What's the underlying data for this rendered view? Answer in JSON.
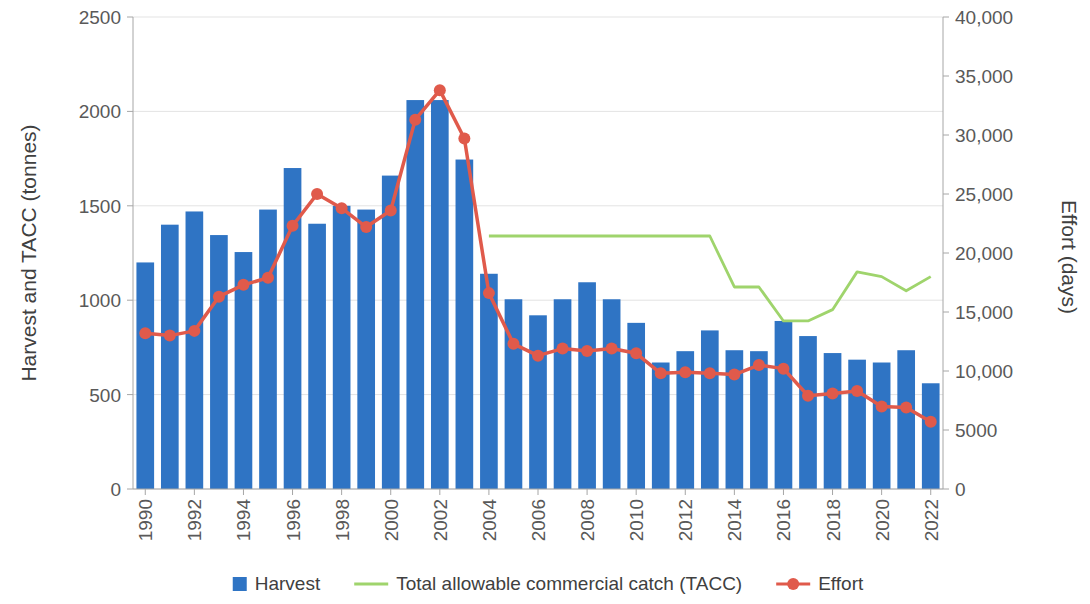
{
  "chart_data": {
    "type": "bar",
    "y_label": "Harvest and TACC (tonnes)",
    "y2_label": "Effort (days)",
    "categories": [
      "1990",
      null,
      "1992",
      null,
      "1994",
      null,
      "1996",
      null,
      "1998",
      null,
      "2000",
      null,
      "2002",
      null,
      "2004",
      null,
      "2006",
      null,
      "2008",
      null,
      "2010",
      null,
      "2012",
      null,
      "2014",
      null,
      "2016",
      null,
      "2018",
      null,
      "2020",
      null,
      "2022"
    ],
    "series": [
      {
        "name": "Harvest",
        "type": "bar",
        "color": "#2f74c4",
        "values": [
          1200,
          1400,
          1470,
          1345,
          1255,
          1480,
          1700,
          1405,
          1500,
          1480,
          1660,
          2060,
          2060,
          1745,
          1140,
          1005,
          920,
          1005,
          1095,
          1005,
          880,
          670,
          730,
          840,
          735,
          730,
          890,
          810,
          720,
          685,
          670,
          735,
          560
        ]
      },
      {
        "name": "Total allowable commercial catch (TACC)",
        "type": "line",
        "color": "#9fd46c",
        "marker": "none",
        "values": [
          null,
          null,
          null,
          null,
          null,
          null,
          null,
          null,
          null,
          null,
          null,
          null,
          null,
          null,
          1340,
          1340,
          1340,
          1340,
          1340,
          1340,
          1340,
          1340,
          1340,
          1340,
          1070,
          1070,
          890,
          890,
          950,
          1150,
          1125,
          1050,
          1125
        ]
      },
      {
        "name": "Effort",
        "type": "line",
        "color": "#e05a4b",
        "marker": "circle",
        "axis": "y2",
        "values": [
          13200,
          13000,
          13400,
          16300,
          17300,
          17900,
          22300,
          25000,
          23800,
          22200,
          23600,
          31300,
          33800,
          29700,
          16600,
          12300,
          11300,
          11900,
          11700,
          11900,
          11500,
          9800,
          9900,
          9800,
          9700,
          10500,
          10200,
          7900,
          8100,
          8300,
          7000,
          6900,
          5700
        ]
      }
    ],
    "ylim": [
      0,
      2500
    ],
    "yticks": [
      0,
      500,
      1000,
      1500,
      2000,
      2500
    ],
    "y2lim": [
      0,
      40000
    ],
    "y2ticks": [
      0,
      5000,
      {
        "value": 10000,
        "label": "10,000"
      },
      {
        "value": 15000,
        "label": "15,000"
      },
      {
        "value": 20000,
        "label": "20,000"
      },
      {
        "value": 25000,
        "label": "25,000"
      },
      {
        "value": 30000,
        "label": "30,000"
      },
      {
        "value": 35000,
        "label": "35,000"
      },
      {
        "value": 40000,
        "label": "40,000"
      }
    ],
    "grid": true,
    "legend": "bottom"
  }
}
